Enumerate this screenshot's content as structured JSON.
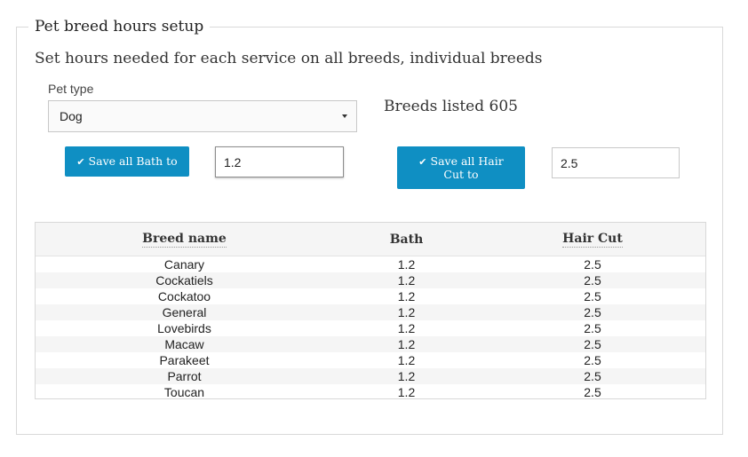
{
  "panel": {
    "title": "Pet breed hours setup",
    "intro": "Set hours needed for each service on all breeds, individual breeds"
  },
  "pet_type": {
    "label": "Pet type",
    "selected": "Dog"
  },
  "breeds_listed": "Breeds listed 605",
  "bath": {
    "button_label": "Save all Bath to",
    "value": "1.2"
  },
  "hair_cut": {
    "button_label": "Save all Hair Cut to",
    "value": "2.5"
  },
  "table": {
    "headers": [
      "Breed name",
      "Bath",
      "Hair Cut"
    ],
    "rows": [
      [
        "Canary",
        "1.2",
        "2.5"
      ],
      [
        "Cockatiels",
        "1.2",
        "2.5"
      ],
      [
        "Cockatoo",
        "1.2",
        "2.5"
      ],
      [
        "General",
        "1.2",
        "2.5"
      ],
      [
        "Lovebirds",
        "1.2",
        "2.5"
      ],
      [
        "Macaw",
        "1.2",
        "2.5"
      ],
      [
        "Parakeet",
        "1.2",
        "2.5"
      ],
      [
        "Parrot",
        "1.2",
        "2.5"
      ],
      [
        "Toucan",
        "1.2",
        "2.5"
      ]
    ]
  },
  "icons": {
    "button_icon": "check-icon",
    "select_icon": "caret-down-icon"
  },
  "colors": {
    "accent": "#0f8fc3"
  }
}
